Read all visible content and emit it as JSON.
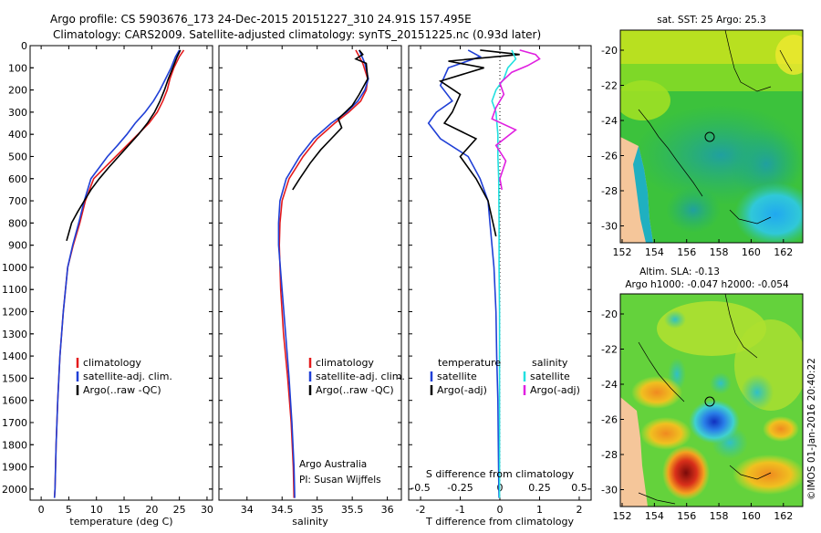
{
  "header": {
    "line1": "Argo profile: CS 5903676_173 24-Dec-2015 20151227_310 24.91S 157.495E",
    "line2": "Climatology: CARS2009. Satellite-adjusted climatology: synTS_20151225.nc (0.93d later)"
  },
  "colors": {
    "climatology": "#e41a1c",
    "satellite": "#1f3fd6",
    "argo": "#000000",
    "sal_satellite": "#22e0e0",
    "sal_argo": "#e020e0"
  },
  "depth_axis": {
    "ylim": [
      0,
      2050
    ],
    "ticks": [
      0,
      100,
      200,
      300,
      400,
      500,
      600,
      700,
      800,
      900,
      1000,
      1100,
      1200,
      1300,
      1400,
      1500,
      1600,
      1700,
      1800,
      1900,
      2000
    ]
  },
  "chart_data": [
    {
      "type": "line",
      "id": "temperature",
      "xlabel": "temperature (deg C)",
      "xlim": [
        -2,
        31
      ],
      "xticks": [
        0,
        5,
        10,
        15,
        20,
        25,
        30
      ],
      "series": [
        {
          "name": "climatology",
          "color": "#e41a1c",
          "x": [
            25.8,
            25.0,
            24.0,
            23.3,
            22.8,
            22.0,
            21.0,
            19.5,
            17.5,
            15.5,
            13.5,
            11.5,
            9.5,
            8.0,
            7.0,
            5.8,
            4.8,
            4.0,
            3.4,
            3.0,
            2.7,
            2.5,
            2.4
          ],
          "y": [
            20,
            50,
            100,
            150,
            200,
            250,
            300,
            350,
            400,
            450,
            500,
            550,
            600,
            700,
            800,
            900,
            1000,
            1200,
            1400,
            1600,
            1800,
            2000,
            2040
          ]
        },
        {
          "name": "satellite-adj. clim.",
          "color": "#1f3fd6",
          "x": [
            25.0,
            24.3,
            23.5,
            22.5,
            21.5,
            20.3,
            18.8,
            17.0,
            15.5,
            13.8,
            12.0,
            10.5,
            9.0,
            7.8,
            6.8,
            5.7,
            4.8,
            4.0,
            3.4,
            3.0,
            2.7,
            2.5,
            2.4
          ],
          "y": [
            20,
            50,
            100,
            150,
            200,
            250,
            300,
            350,
            400,
            450,
            500,
            550,
            600,
            700,
            800,
            900,
            1000,
            1200,
            1400,
            1600,
            1800,
            2000,
            2040
          ]
        },
        {
          "name": "Argo(..raw -QC)",
          "color": "#000000",
          "x": [
            25.2,
            24.6,
            23.8,
            23.0,
            22.3,
            21.5,
            20.5,
            19.2,
            17.6,
            15.8,
            14.0,
            12.2,
            10.5,
            9.0,
            7.8,
            6.6,
            5.5,
            4.6
          ],
          "y": [
            20,
            50,
            100,
            150,
            200,
            250,
            300,
            350,
            400,
            450,
            500,
            550,
            600,
            650,
            700,
            750,
            800,
            880
          ]
        }
      ],
      "legend": [
        "climatology",
        "satellite-adj. clim.",
        "Argo(..raw -QC)"
      ]
    },
    {
      "type": "line",
      "id": "salinity",
      "xlabel": "salinity",
      "xlim": [
        33.6,
        36.2
      ],
      "xticks": [
        34,
        34.5,
        35,
        35.5,
        36
      ],
      "xticklabels": [
        "34",
        "34.5",
        "35",
        "35.5",
        "36"
      ],
      "series": [
        {
          "name": "climatology",
          "color": "#e41a1c",
          "x": [
            35.55,
            35.65,
            35.72,
            35.7,
            35.62,
            35.45,
            35.25,
            35.0,
            34.8,
            34.6,
            34.5,
            34.47,
            34.46,
            34.48,
            34.52,
            34.58,
            34.63,
            34.66,
            34.67
          ],
          "y": [
            20,
            80,
            150,
            200,
            250,
            300,
            350,
            420,
            500,
            600,
            700,
            800,
            900,
            1100,
            1300,
            1500,
            1700,
            1900,
            2040
          ]
        },
        {
          "name": "satellite-adj. clim.",
          "color": "#1f3fd6",
          "x": [
            35.6,
            35.68,
            35.73,
            35.68,
            35.58,
            35.42,
            35.2,
            34.95,
            34.75,
            34.56,
            34.47,
            34.45,
            34.45,
            34.5,
            34.55,
            34.6,
            34.64,
            34.67,
            34.68
          ],
          "y": [
            20,
            80,
            150,
            200,
            250,
            300,
            350,
            420,
            500,
            600,
            700,
            800,
            900,
            1100,
            1300,
            1500,
            1700,
            1900,
            2040
          ]
        },
        {
          "name": "Argo(..raw -QC)",
          "color": "#000000",
          "x": [
            35.6,
            35.65,
            35.55,
            35.7,
            35.72,
            35.6,
            35.5,
            35.4,
            35.3,
            35.35,
            35.2,
            35.05,
            34.9,
            34.75,
            34.65
          ],
          "y": [
            20,
            40,
            60,
            80,
            150,
            220,
            270,
            300,
            330,
            370,
            420,
            470,
            530,
            600,
            650
          ]
        }
      ],
      "legend": [
        "climatology",
        "satellite-adj. clim.",
        "Argo(..raw -QC)"
      ]
    },
    {
      "type": "line",
      "id": "difference",
      "xlabel_bottom": "T difference from climatology",
      "xlabel_top": "S difference from climatology",
      "xlim_T": [
        -2.3,
        2.3
      ],
      "xticks_T": [
        -2,
        -1,
        0,
        1,
        2
      ],
      "xticks_S": [
        -0.5,
        -0.25,
        0,
        0.25,
        0.5
      ],
      "xticklabels_S": [
        "-0.5",
        "-0.25",
        "0",
        "0.25",
        "0.5"
      ],
      "series": [
        {
          "name": "temperature satellite",
          "color": "#1f3fd6",
          "scale": "T",
          "x": [
            -0.8,
            -0.5,
            -1.3,
            -1.5,
            -1.2,
            -1.6,
            -1.8,
            -1.5,
            -0.8,
            -0.5,
            -0.3,
            -0.25,
            -0.2,
            -0.15,
            -0.1,
            -0.08,
            -0.05,
            -0.04,
            -0.03,
            -0.02
          ],
          "y": [
            20,
            50,
            100,
            180,
            250,
            300,
            350,
            420,
            500,
            600,
            700,
            800,
            900,
            1000,
            1200,
            1400,
            1600,
            1800,
            1950,
            2040
          ]
        },
        {
          "name": "temperature Argo(-adj)",
          "color": "#000000",
          "scale": "T",
          "x": [
            -0.5,
            0.5,
            -1.3,
            -0.4,
            -1.5,
            -1.0,
            -1.2,
            -1.4,
            -0.6,
            -1.0,
            -0.6,
            -0.3,
            -0.1
          ],
          "y": [
            20,
            40,
            70,
            100,
            160,
            220,
            300,
            350,
            420,
            500,
            600,
            700,
            860
          ]
        },
        {
          "name": "salinity satellite",
          "color": "#22e0e0",
          "scale": "T",
          "x": [
            0.3,
            0.4,
            0.2,
            0.1,
            -0.1,
            -0.2,
            -0.1,
            -0.05,
            -0.05,
            -0.03,
            -0.02,
            -0.02,
            -0.01,
            -0.01,
            -0.01,
            -0.01,
            -0.01
          ],
          "y": [
            20,
            60,
            100,
            150,
            200,
            250,
            300,
            400,
            500,
            600,
            800,
            1000,
            1200,
            1400,
            1600,
            1800,
            2040
          ]
        },
        {
          "name": "salinity Argo(-adj)",
          "color": "#e020e0",
          "scale": "T",
          "x": [
            0.5,
            0.9,
            1.0,
            0.7,
            0.3,
            0.0,
            0.1,
            -0.1,
            -0.2,
            0.4,
            -0.1,
            0.15,
            0.0,
            0.05
          ],
          "y": [
            20,
            40,
            60,
            90,
            120,
            170,
            220,
            280,
            330,
            380,
            450,
            520,
            600,
            650
          ]
        }
      ],
      "legend_temperature": {
        "title": "temperature",
        "items": [
          "satellite",
          "Argo(-adj)"
        ]
      },
      "legend_salinity": {
        "title": "salinity",
        "items": [
          "satellite",
          "Argo(-adj)"
        ]
      }
    }
  ],
  "annotations": {
    "org": "Argo Australia",
    "pi": "PI: Susan Wijffels"
  },
  "maps": {
    "sst": {
      "title": "sat. SST: 25 Argo: 25.3",
      "xticks": [
        152,
        154,
        156,
        158,
        160,
        162
      ],
      "yticks": [
        -20,
        -22,
        -24,
        -26,
        -28,
        -30
      ]
    },
    "sla": {
      "title1": "Altim. SLA: -0.13",
      "title2": "Argo h1000: -0.047 h2000: -0.054",
      "xticks": [
        152,
        154,
        156,
        158,
        160,
        162
      ],
      "yticks": [
        -20,
        -22,
        -24,
        -26,
        -28,
        -30
      ]
    }
  },
  "footer": {
    "stamp": "©IMOS 01-Jan-2016 20:40:22"
  }
}
